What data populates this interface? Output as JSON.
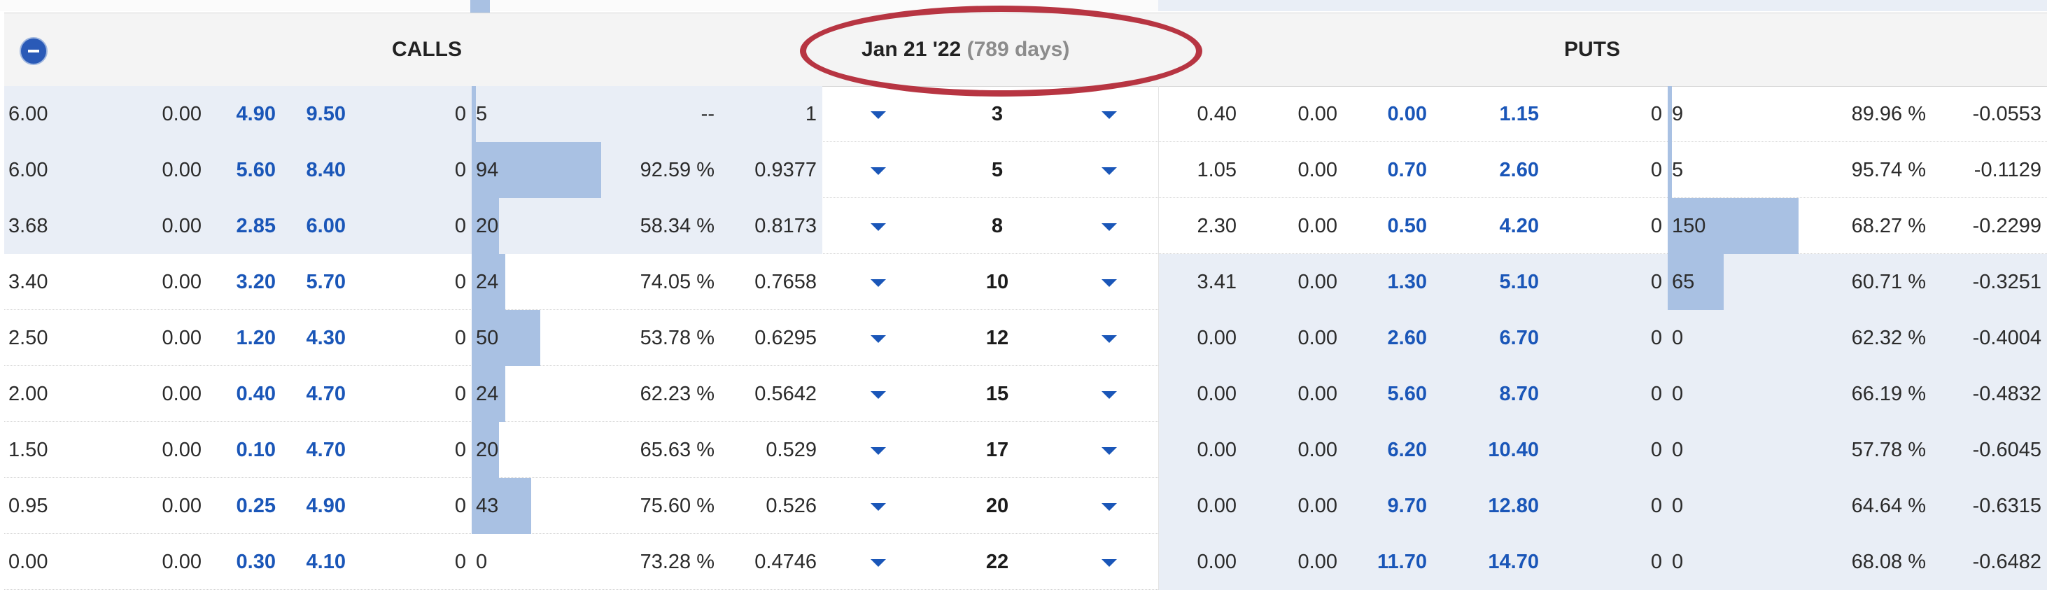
{
  "header": {
    "calls_label": "CALLS",
    "puts_label": "PUTS",
    "expiry_date": "Jan 21 '22",
    "expiry_days": "(789 days)"
  },
  "colors": {
    "highlight_oval": "#b73542",
    "in_the_money_bg": "#e9eef6",
    "volume_bar": "#a9c1e3",
    "link_blue": "#1a56b8"
  },
  "rows": [
    {
      "c_last": "6.00",
      "c_change": "0.00",
      "c_bid": "4.90",
      "c_ask": "9.50",
      "c_volume": "0",
      "c_oi": "5",
      "c_oi_fraction": 0.01,
      "c_iv": "--",
      "c_delta": "1",
      "strike": "3",
      "p_last": "0.40",
      "p_change": "0.00",
      "p_bid": "0.00",
      "p_ask": "1.15",
      "p_volume": "0",
      "p_oi": "9",
      "p_oi_fraction": 0.02,
      "p_iv": "89.96 %",
      "p_delta": "-0.0553",
      "call_itm": true,
      "put_itm": false
    },
    {
      "c_last": "6.00",
      "c_change": "0.00",
      "c_bid": "5.60",
      "c_ask": "8.40",
      "c_volume": "0",
      "c_oi": "94",
      "c_oi_fraction": 1.0,
      "c_iv": "92.59 %",
      "c_delta": "0.9377",
      "strike": "5",
      "p_last": "1.05",
      "p_change": "0.00",
      "p_bid": "0.70",
      "p_ask": "2.60",
      "p_volume": "0",
      "p_oi": "5",
      "p_oi_fraction": 0.01,
      "p_iv": "95.74 %",
      "p_delta": "-0.1129",
      "call_itm": true,
      "put_itm": false
    },
    {
      "c_last": "3.68",
      "c_change": "0.00",
      "c_bid": "2.85",
      "c_ask": "6.00",
      "c_volume": "0",
      "c_oi": "20",
      "c_oi_fraction": 0.21,
      "c_iv": "58.34 %",
      "c_delta": "0.8173",
      "strike": "8",
      "p_last": "2.30",
      "p_change": "0.00",
      "p_bid": "0.50",
      "p_ask": "4.20",
      "p_volume": "0",
      "p_oi": "150",
      "p_oi_fraction": 1.0,
      "p_iv": "68.27 %",
      "p_delta": "-0.2299",
      "call_itm": true,
      "put_itm": false
    },
    {
      "c_last": "3.40",
      "c_change": "0.00",
      "c_bid": "3.20",
      "c_ask": "5.70",
      "c_volume": "0",
      "c_oi": "24",
      "c_oi_fraction": 0.26,
      "c_iv": "74.05 %",
      "c_delta": "0.7658",
      "strike": "10",
      "p_last": "3.41",
      "p_change": "0.00",
      "p_bid": "1.30",
      "p_ask": "5.10",
      "p_volume": "0",
      "p_oi": "65",
      "p_oi_fraction": 0.43,
      "p_iv": "60.71 %",
      "p_delta": "-0.3251",
      "call_itm": false,
      "put_itm": true
    },
    {
      "c_last": "2.50",
      "c_change": "0.00",
      "c_bid": "1.20",
      "c_ask": "4.30",
      "c_volume": "0",
      "c_oi": "50",
      "c_oi_fraction": 0.53,
      "c_iv": "53.78 %",
      "c_delta": "0.6295",
      "strike": "12",
      "p_last": "0.00",
      "p_change": "0.00",
      "p_bid": "2.60",
      "p_ask": "6.70",
      "p_volume": "0",
      "p_oi": "0",
      "p_oi_fraction": 0,
      "p_iv": "62.32 %",
      "p_delta": "-0.4004",
      "call_itm": false,
      "put_itm": true
    },
    {
      "c_last": "2.00",
      "c_change": "0.00",
      "c_bid": "0.40",
      "c_ask": "4.70",
      "c_volume": "0",
      "c_oi": "24",
      "c_oi_fraction": 0.26,
      "c_iv": "62.23 %",
      "c_delta": "0.5642",
      "strike": "15",
      "p_last": "0.00",
      "p_change": "0.00",
      "p_bid": "5.60",
      "p_ask": "8.70",
      "p_volume": "0",
      "p_oi": "0",
      "p_oi_fraction": 0,
      "p_iv": "66.19 %",
      "p_delta": "-0.4832",
      "call_itm": false,
      "put_itm": true
    },
    {
      "c_last": "1.50",
      "c_change": "0.00",
      "c_bid": "0.10",
      "c_ask": "4.70",
      "c_volume": "0",
      "c_oi": "20",
      "c_oi_fraction": 0.21,
      "c_iv": "65.63 %",
      "c_delta": "0.529",
      "strike": "17",
      "p_last": "0.00",
      "p_change": "0.00",
      "p_bid": "6.20",
      "p_ask": "10.40",
      "p_volume": "0",
      "p_oi": "0",
      "p_oi_fraction": 0,
      "p_iv": "57.78 %",
      "p_delta": "-0.6045",
      "call_itm": false,
      "put_itm": true
    },
    {
      "c_last": "0.95",
      "c_change": "0.00",
      "c_bid": "0.25",
      "c_ask": "4.90",
      "c_volume": "0",
      "c_oi": "43",
      "c_oi_fraction": 0.46,
      "c_iv": "75.60 %",
      "c_delta": "0.526",
      "strike": "20",
      "p_last": "0.00",
      "p_change": "0.00",
      "p_bid": "9.70",
      "p_ask": "12.80",
      "p_volume": "0",
      "p_oi": "0",
      "p_oi_fraction": 0,
      "p_iv": "64.64 %",
      "p_delta": "-0.6315",
      "call_itm": false,
      "put_itm": true
    },
    {
      "c_last": "0.00",
      "c_change": "0.00",
      "c_bid": "0.30",
      "c_ask": "4.10",
      "c_volume": "0",
      "c_oi": "0",
      "c_oi_fraction": 0,
      "c_iv": "73.28 %",
      "c_delta": "0.4746",
      "strike": "22",
      "p_last": "0.00",
      "p_change": "0.00",
      "p_bid": "11.70",
      "p_ask": "14.70",
      "p_volume": "0",
      "p_oi": "0",
      "p_oi_fraction": 0,
      "p_iv": "68.08 %",
      "p_delta": "-0.6482",
      "call_itm": false,
      "put_itm": true
    }
  ]
}
